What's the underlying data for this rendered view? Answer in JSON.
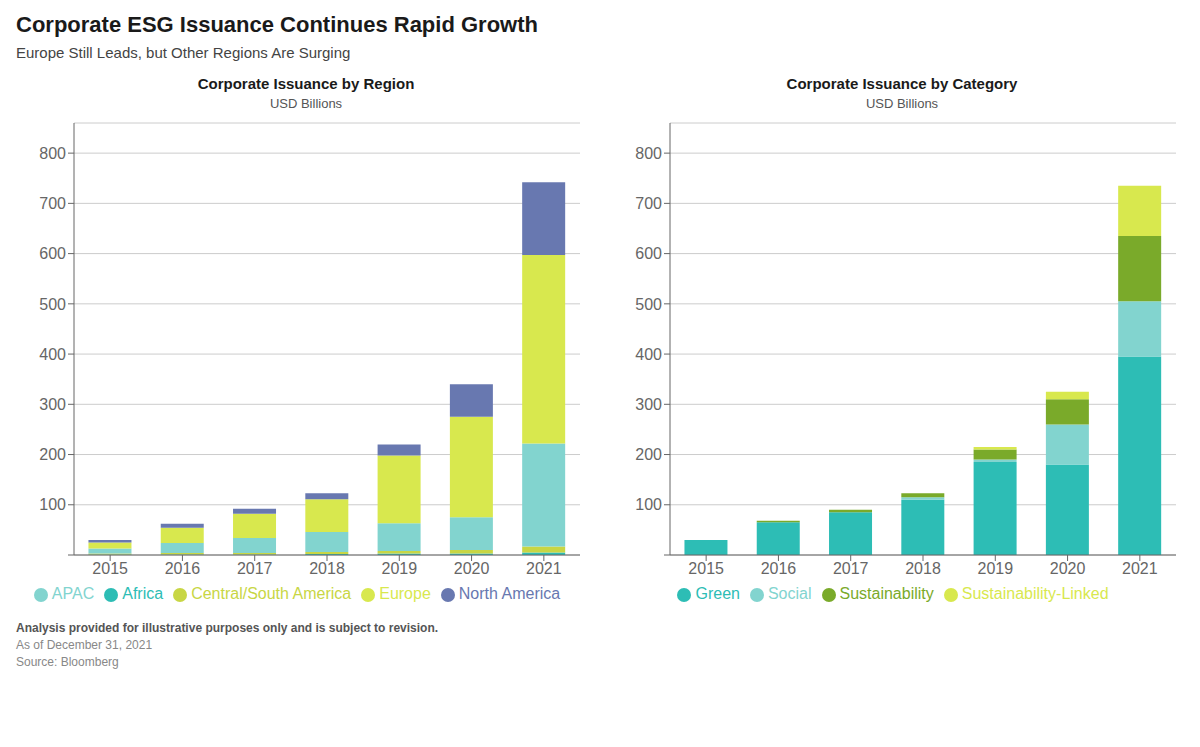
{
  "title": "Corporate ESG Issuance Continues Rapid Growth",
  "subtitle": "Europe Still Leads, but Other Regions Are Surging",
  "annotations": [
    "Analysis provided for illustrative purposes only and is subject to revision.",
    "As of December 31, 2021",
    "Source: Bloomberg"
  ],
  "chart_data": [
    {
      "type": "bar",
      "stacked": true,
      "title": "Corporate Issuance by Region",
      "subtitle": "USD Billions",
      "categories": [
        "2015",
        "2016",
        "2017",
        "2018",
        "2019",
        "2020",
        "2021"
      ],
      "series": [
        {
          "name": "Africa",
          "color": "#2dbdb5",
          "values": [
            1,
            1,
            1,
            2,
            3,
            3,
            5
          ]
        },
        {
          "name": "Central/South America",
          "color": "#c8d644",
          "values": [
            2,
            3,
            3,
            4,
            5,
            7,
            12
          ]
        },
        {
          "name": "APAC",
          "color": "#82d4cf",
          "values": [
            10,
            20,
            30,
            40,
            55,
            65,
            205
          ]
        },
        {
          "name": "Europe",
          "color": "#d8e84e",
          "values": [
            12,
            30,
            48,
            65,
            135,
            200,
            375
          ]
        },
        {
          "name": "North America",
          "color": "#6878b0",
          "values": [
            5,
            8,
            10,
            12,
            22,
            65,
            145
          ]
        }
      ],
      "ylim": [
        0,
        860
      ],
      "yticks": [
        {
          "value": 0,
          "label": ""
        },
        100,
        200,
        300,
        400,
        500,
        600,
        700,
        800
      ],
      "grid": true,
      "legend": "bottom"
    },
    {
      "type": "bar",
      "stacked": true,
      "title": "Corporate Issuance by Category",
      "subtitle": "USD Billions",
      "categories": [
        "2015",
        "2016",
        "2017",
        "2018",
        "2019",
        "2020",
        "2021"
      ],
      "series": [
        {
          "name": "Green",
          "color": "#2dbdb5",
          "values": [
            30,
            65,
            85,
            110,
            185,
            180,
            395
          ]
        },
        {
          "name": "Social",
          "color": "#82d4cf",
          "values": [
            0,
            0,
            0,
            5,
            5,
            80,
            110
          ]
        },
        {
          "name": "Sustainability",
          "color": "#7aaa2a",
          "values": [
            0,
            3,
            5,
            8,
            20,
            50,
            130
          ]
        },
        {
          "name": "Sustainability-Linked",
          "color": "#d8e84e",
          "values": [
            0,
            0,
            0,
            0,
            5,
            15,
            100
          ]
        }
      ],
      "ylim": [
        0,
        860
      ],
      "yticks": [
        {
          "value": 0,
          "label": ""
        },
        100,
        200,
        300,
        400,
        500,
        600,
        700,
        800
      ],
      "grid": true,
      "legend": "bottom"
    }
  ]
}
